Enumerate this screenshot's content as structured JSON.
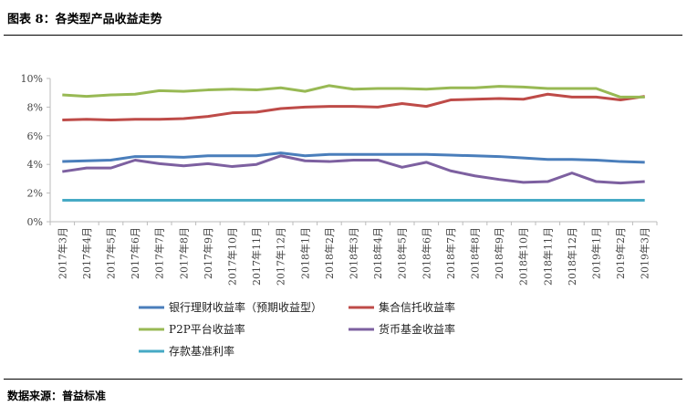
{
  "title": "图表 8：各类型产品收益走势",
  "source": "数据来源：普益标准",
  "chart_data": {
    "type": "line",
    "title": "",
    "xlabel": "",
    "ylabel": "",
    "ylim": [
      0,
      10
    ],
    "yticks": [
      "0%",
      "2%",
      "4%",
      "6%",
      "8%",
      "10%"
    ],
    "categories": [
      "2017年3月",
      "2017年4月",
      "2017年5月",
      "2017年6月",
      "2017年7月",
      "2017年8月",
      "2017年9月",
      "2017年10月",
      "2017年11月",
      "2017年12月",
      "2018年1月",
      "2018年2月",
      "2018年3月",
      "2018年4月",
      "2018年5月",
      "2018年6月",
      "2018年7月",
      "2018年8月",
      "2018年9月",
      "2018年10月",
      "2018年11月",
      "2018年12月",
      "2019年1月",
      "2019年2月",
      "2019年3月"
    ],
    "legend_position": "bottom",
    "series": [
      {
        "name": "银行理财收益率（预期收益型）",
        "color": "#4a7ebb",
        "values": [
          4.2,
          4.25,
          4.3,
          4.55,
          4.55,
          4.5,
          4.6,
          4.6,
          4.6,
          4.8,
          4.6,
          4.7,
          4.7,
          4.7,
          4.7,
          4.7,
          4.65,
          4.6,
          4.55,
          4.45,
          4.35,
          4.35,
          4.3,
          4.2,
          4.15
        ]
      },
      {
        "name": "集合信托收益率",
        "color": "#be4b48",
        "values": [
          7.1,
          7.15,
          7.1,
          7.15,
          7.15,
          7.2,
          7.35,
          7.6,
          7.65,
          7.9,
          8.0,
          8.05,
          8.05,
          8.0,
          8.25,
          8.05,
          8.5,
          8.55,
          8.6,
          8.55,
          8.9,
          8.7,
          8.7,
          8.5,
          8.75
        ]
      },
      {
        "name": "P2P平台收益率",
        "color": "#98b954",
        "values": [
          8.85,
          8.75,
          8.85,
          8.9,
          9.15,
          9.1,
          9.2,
          9.25,
          9.2,
          9.35,
          9.1,
          9.5,
          9.25,
          9.3,
          9.3,
          9.25,
          9.35,
          9.35,
          9.45,
          9.4,
          9.3,
          9.3,
          9.3,
          8.7,
          8.7
        ]
      },
      {
        "name": "货币基金收益率",
        "color": "#7d60a0",
        "values": [
          3.5,
          3.75,
          3.75,
          4.3,
          4.05,
          3.9,
          4.05,
          3.85,
          4.0,
          4.6,
          4.25,
          4.2,
          4.3,
          4.3,
          3.8,
          4.15,
          3.55,
          3.2,
          2.95,
          2.75,
          2.8,
          3.4,
          2.8,
          2.7,
          2.8
        ]
      },
      {
        "name": "存款基准利率",
        "color": "#46aac5",
        "values": [
          1.5,
          1.5,
          1.5,
          1.5,
          1.5,
          1.5,
          1.5,
          1.5,
          1.5,
          1.5,
          1.5,
          1.5,
          1.5,
          1.5,
          1.5,
          1.5,
          1.5,
          1.5,
          1.5,
          1.5,
          1.5,
          1.5,
          1.5,
          1.5,
          1.5
        ]
      }
    ]
  }
}
